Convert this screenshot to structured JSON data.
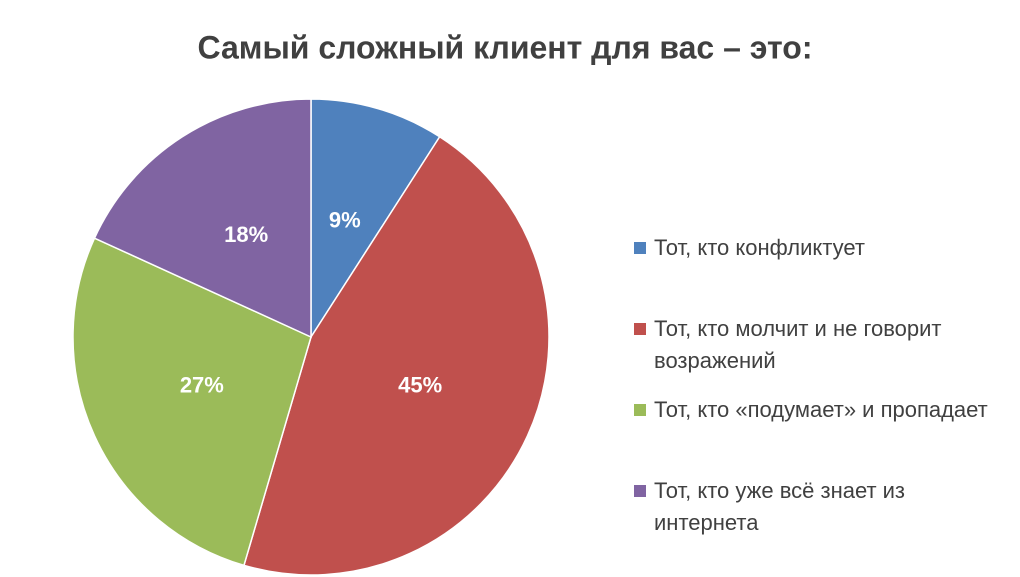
{
  "chart_data": {
    "type": "pie",
    "title": "Самый сложный клиент для вас – это:",
    "categories": [
      "Тот, кто конфликтует",
      "Тот, кто молчит и не говорит возражений",
      "Тот, кто «подумает» и пропадает",
      "Тот, кто уже всё знает из интернета"
    ],
    "values": [
      9,
      45,
      27,
      18
    ],
    "value_labels": [
      "9%",
      "45%",
      "27%",
      "18%"
    ],
    "colors": [
      "#4f81bd",
      "#c0504d",
      "#9bbb59",
      "#8064a2"
    ],
    "legend": "right"
  }
}
